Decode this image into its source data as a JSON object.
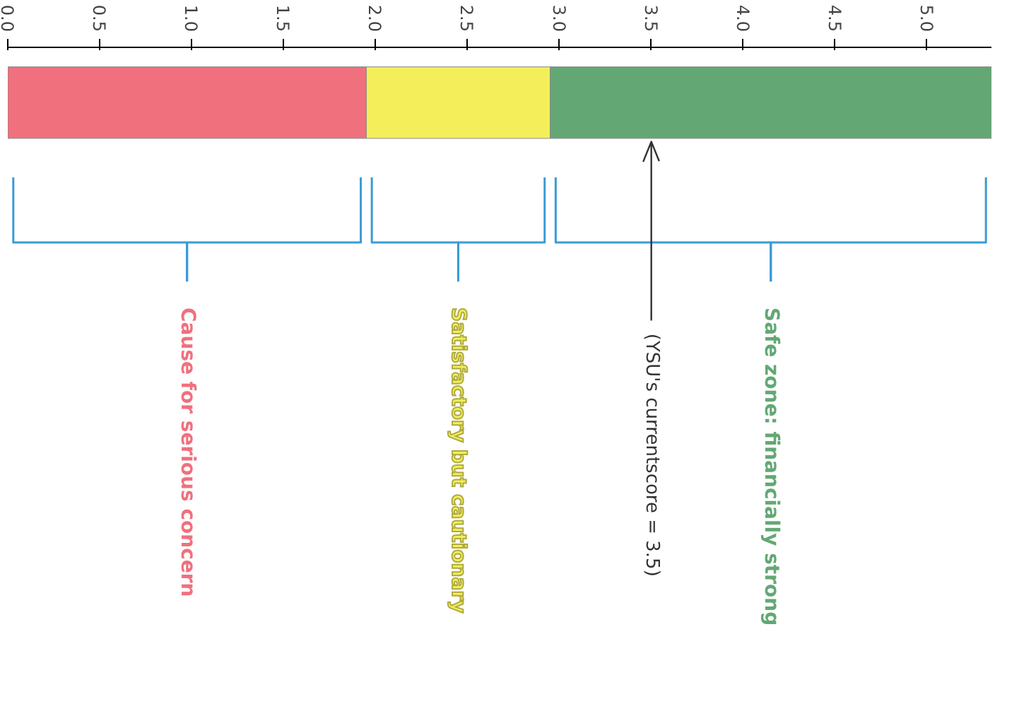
{
  "chart_data": {
    "type": "bar",
    "orientation": "horizontal",
    "stacked": true,
    "categories": [
      null
    ],
    "series": [
      {
        "name": "Cause for serious concern",
        "color": "#f0707e",
        "values": [
          1.95
        ]
      },
      {
        "name": "Satisfactory but cautionary",
        "color": "#f4ee5a",
        "values": [
          1.0
        ]
      },
      {
        "name": "Safe zone: financially strong",
        "color": "#63a874",
        "values": [
          2.4
        ]
      }
    ],
    "xlim": [
      0,
      5.35
    ],
    "xticks": [
      {
        "value": 0,
        "label": "0.0"
      },
      {
        "value": 0.5,
        "label": "0.5"
      },
      {
        "value": 1,
        "label": "1.0"
      },
      {
        "value": 1.5,
        "label": "1.5"
      },
      {
        "value": 2,
        "label": "2.0"
      },
      {
        "value": 2.5,
        "label": "2.5"
      },
      {
        "value": 3,
        "label": "3.0"
      },
      {
        "value": 3.5,
        "label": "3.5"
      },
      {
        "value": 4,
        "label": "4.0"
      },
      {
        "value": 4.5,
        "label": "4.5"
      },
      {
        "value": 5,
        "label": "5.0"
      }
    ],
    "ref_lines": [
      {
        "axis": "x",
        "value": 3.5,
        "label": "(YSU's currentscore = 3.5)",
        "color": "#333333"
      }
    ],
    "grid": false
  }
}
